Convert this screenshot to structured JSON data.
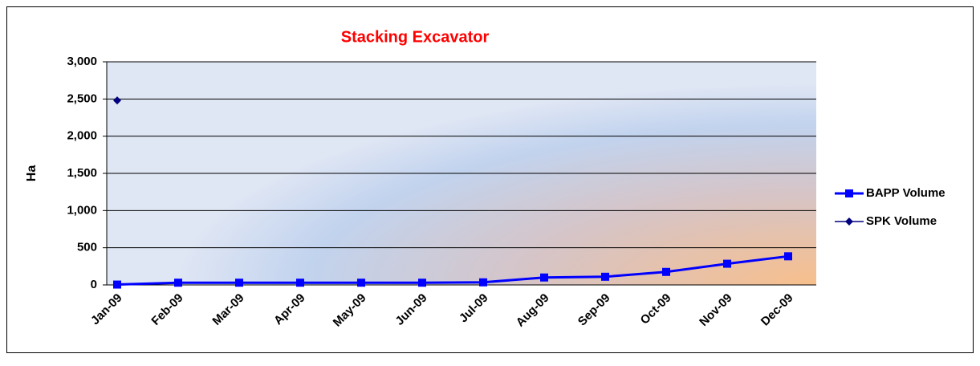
{
  "chart_data": {
    "type": "line",
    "title": "Stacking Excavator",
    "y_label": "Ha",
    "categories": [
      "Jan-09",
      "Feb-09",
      "Mar-09",
      "Apr-09",
      "May-09",
      "Jun-09",
      "Jul-09",
      "Aug-09",
      "Sep-09",
      "Oct-09",
      "Nov-09",
      "Dec-09"
    ],
    "series": [
      {
        "name": "BAPP Volume",
        "color": "#0000ff",
        "marker": "square",
        "values": [
          5,
          30,
          30,
          30,
          30,
          30,
          35,
          100,
          110,
          175,
          285,
          385
        ]
      },
      {
        "name": "SPK Volume",
        "color": "#000080",
        "marker": "diamond",
        "values": [
          2480,
          null,
          null,
          null,
          null,
          null,
          null,
          null,
          null,
          null,
          null,
          null
        ]
      }
    ],
    "ylim": [
      0,
      3000
    ],
    "yticks": [
      0,
      500,
      {
        "value": 1000,
        "label": "1,000"
      },
      {
        "value": 1500,
        "label": "1,500"
      },
      {
        "value": 2000,
        "label": "2,000"
      },
      {
        "value": 2500,
        "label": "2,500"
      },
      {
        "value": 3000,
        "label": "3,000"
      }
    ],
    "grid": true,
    "legend": "right"
  }
}
